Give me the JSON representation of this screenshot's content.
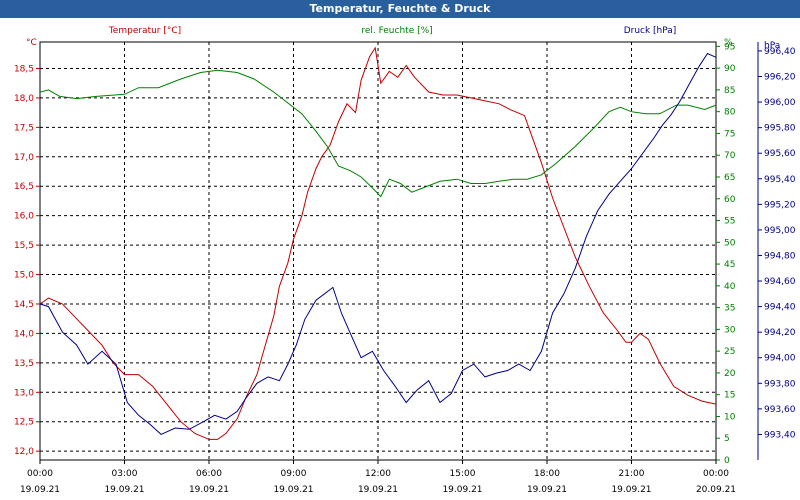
{
  "window": {
    "title": "Temperatur, Feuchte & Druck"
  },
  "colors": {
    "temperature": "#c00000",
    "humidity": "#008000",
    "pressure": "#00008b",
    "titlebar": "#2a5f9e",
    "grid": "#000000"
  },
  "chart_data": {
    "type": "line",
    "title": "Temperatur, Feuchte & Druck",
    "grid": true,
    "x_unit": "hours since 19.09.21 00:00",
    "x_ticks": [
      {
        "time": "00:00",
        "date": "19.09.21"
      },
      {
        "time": "03:00",
        "date": "19.09.21"
      },
      {
        "time": "06:00",
        "date": "19.09.21"
      },
      {
        "time": "09:00",
        "date": "19.09.21"
      },
      {
        "time": "12:00",
        "date": "19.09.21"
      },
      {
        "time": "15:00",
        "date": "19.09.21"
      },
      {
        "time": "18:00",
        "date": "19.09.21"
      },
      {
        "time": "21:00",
        "date": "19.09.21"
      },
      {
        "time": "00:00",
        "date": "20.09.21"
      }
    ],
    "xlim": [
      0,
      24
    ],
    "axes": {
      "temperature": {
        "header": "Temperatur [°C]",
        "unit": "°C",
        "min": 11.85,
        "max": 18.95,
        "ticks": [
          "12,0",
          "12,5",
          "13,0",
          "13,5",
          "14,0",
          "14,5",
          "15,0",
          "15,5",
          "16,0",
          "16,5",
          "17,0",
          "17,5",
          "18,0",
          "18,5"
        ],
        "tick_values": [
          12.0,
          12.5,
          13.0,
          13.5,
          14.0,
          14.5,
          15.0,
          15.5,
          16.0,
          16.5,
          17.0,
          17.5,
          18.0,
          18.5
        ]
      },
      "humidity": {
        "header": "rel. Feuchte [%]",
        "unit": "%",
        "min": 0,
        "max": 96,
        "ticks": [
          "0",
          "5",
          "10",
          "15",
          "20",
          "25",
          "30",
          "35",
          "40",
          "45",
          "50",
          "55",
          "60",
          "65",
          "70",
          "75",
          "80",
          "85",
          "90",
          "95",
          "%"
        ],
        "tick_values": [
          0,
          5,
          10,
          15,
          20,
          25,
          30,
          35,
          40,
          45,
          50,
          55,
          60,
          65,
          70,
          75,
          80,
          85,
          90,
          95,
          96
        ]
      },
      "pressure": {
        "header": "Druck [hPa]",
        "unit": "hPa",
        "min": 993.2,
        "max": 996.47,
        "ticks": [
          "993,40",
          "993,60",
          "993,80",
          "994,00",
          "994,20",
          "994,40",
          "994,60",
          "994,80",
          "995,00",
          "995,20",
          "995,40",
          "995,60",
          "995,80",
          "996,00",
          "996,20",
          "996,40"
        ],
        "tick_values": [
          993.4,
          993.6,
          993.8,
          994.0,
          994.2,
          994.4,
          994.6,
          994.8,
          995.0,
          995.2,
          995.4,
          995.6,
          995.8,
          996.0,
          996.2,
          996.4
        ]
      }
    },
    "series": [
      {
        "name": "Temperatur",
        "axis": "temperature",
        "color": "#c00000",
        "points": [
          [
            0,
            14.5
          ],
          [
            0.3,
            14.6
          ],
          [
            0.8,
            14.5
          ],
          [
            1.2,
            14.3
          ],
          [
            1.7,
            14.05
          ],
          [
            2.2,
            13.8
          ],
          [
            2.6,
            13.5
          ],
          [
            3.0,
            13.3
          ],
          [
            3.5,
            13.3
          ],
          [
            4.0,
            13.1
          ],
          [
            4.5,
            12.8
          ],
          [
            5.0,
            12.5
          ],
          [
            5.5,
            12.3
          ],
          [
            6.0,
            12.2
          ],
          [
            6.3,
            12.2
          ],
          [
            6.6,
            12.3
          ],
          [
            7.0,
            12.55
          ],
          [
            7.3,
            12.9
          ],
          [
            7.7,
            13.3
          ],
          [
            8.0,
            13.8
          ],
          [
            8.3,
            14.3
          ],
          [
            8.5,
            14.8
          ],
          [
            8.8,
            15.2
          ],
          [
            9.0,
            15.6
          ],
          [
            9.3,
            16.0
          ],
          [
            9.5,
            16.4
          ],
          [
            9.8,
            16.8
          ],
          [
            10.0,
            17.0
          ],
          [
            10.3,
            17.2
          ],
          [
            10.6,
            17.6
          ],
          [
            10.9,
            17.9
          ],
          [
            11.2,
            17.75
          ],
          [
            11.4,
            18.3
          ],
          [
            11.7,
            18.7
          ],
          [
            11.9,
            18.85
          ],
          [
            12.1,
            18.25
          ],
          [
            12.4,
            18.45
          ],
          [
            12.7,
            18.35
          ],
          [
            13.0,
            18.55
          ],
          [
            13.3,
            18.35
          ],
          [
            13.8,
            18.1
          ],
          [
            14.3,
            18.05
          ],
          [
            14.8,
            18.05
          ],
          [
            15.3,
            18.0
          ],
          [
            15.8,
            17.95
          ],
          [
            16.3,
            17.9
          ],
          [
            16.7,
            17.8
          ],
          [
            17.2,
            17.7
          ],
          [
            17.5,
            17.3
          ],
          [
            17.8,
            16.9
          ],
          [
            18.2,
            16.3
          ],
          [
            18.6,
            15.8
          ],
          [
            19.0,
            15.3
          ],
          [
            19.5,
            14.8
          ],
          [
            20.0,
            14.35
          ],
          [
            20.5,
            14.05
          ],
          [
            20.8,
            13.85
          ],
          [
            21.0,
            13.85
          ],
          [
            21.3,
            14.0
          ],
          [
            21.6,
            13.9
          ],
          [
            22.0,
            13.5
          ],
          [
            22.5,
            13.1
          ],
          [
            23.0,
            12.95
          ],
          [
            23.5,
            12.85
          ],
          [
            24.0,
            12.8
          ]
        ]
      },
      {
        "name": "rel. Feuchte",
        "axis": "humidity",
        "color": "#008000",
        "points": [
          [
            0,
            84.5
          ],
          [
            0.3,
            85.0
          ],
          [
            0.7,
            83.5
          ],
          [
            1.3,
            83.0
          ],
          [
            2.0,
            83.5
          ],
          [
            3.0,
            84.0
          ],
          [
            3.5,
            85.5
          ],
          [
            4.2,
            85.5
          ],
          [
            5.0,
            87.5
          ],
          [
            5.7,
            89.0
          ],
          [
            6.3,
            89.5
          ],
          [
            7.0,
            89.0
          ],
          [
            7.6,
            87.5
          ],
          [
            8.3,
            84.5
          ],
          [
            8.8,
            82.0
          ],
          [
            9.3,
            79.5
          ],
          [
            9.8,
            75.5
          ],
          [
            10.2,
            72.0
          ],
          [
            10.6,
            67.5
          ],
          [
            11.0,
            66.5
          ],
          [
            11.4,
            65.0
          ],
          [
            11.8,
            62.5
          ],
          [
            12.1,
            60.5
          ],
          [
            12.4,
            64.5
          ],
          [
            12.8,
            63.5
          ],
          [
            13.2,
            61.5
          ],
          [
            13.6,
            62.5
          ],
          [
            14.2,
            64.0
          ],
          [
            14.8,
            64.5
          ],
          [
            15.3,
            63.5
          ],
          [
            15.8,
            63.5
          ],
          [
            16.3,
            64.0
          ],
          [
            16.8,
            64.5
          ],
          [
            17.3,
            64.5
          ],
          [
            17.8,
            65.5
          ],
          [
            18.3,
            68.0
          ],
          [
            19.0,
            72.0
          ],
          [
            19.7,
            76.5
          ],
          [
            20.2,
            80.0
          ],
          [
            20.6,
            81.0
          ],
          [
            21.0,
            80.0
          ],
          [
            21.5,
            79.5
          ],
          [
            22.0,
            79.5
          ],
          [
            22.6,
            81.5
          ],
          [
            23.0,
            81.5
          ],
          [
            23.6,
            80.5
          ],
          [
            24.0,
            81.5
          ]
        ]
      },
      {
        "name": "Druck",
        "axis": "pressure",
        "color": "#00008b",
        "points": [
          [
            0,
            994.42
          ],
          [
            0.3,
            994.4
          ],
          [
            0.8,
            994.2
          ],
          [
            1.3,
            994.1
          ],
          [
            1.7,
            993.95
          ],
          [
            2.2,
            994.05
          ],
          [
            2.7,
            993.95
          ],
          [
            3.1,
            993.65
          ],
          [
            3.5,
            993.55
          ],
          [
            3.9,
            993.48
          ],
          [
            4.3,
            993.4
          ],
          [
            4.8,
            993.45
          ],
          [
            5.3,
            993.44
          ],
          [
            5.8,
            993.5
          ],
          [
            6.2,
            993.55
          ],
          [
            6.6,
            993.52
          ],
          [
            7.0,
            993.58
          ],
          [
            7.3,
            993.68
          ],
          [
            7.7,
            993.8
          ],
          [
            8.1,
            993.85
          ],
          [
            8.5,
            993.82
          ],
          [
            8.8,
            993.95
          ],
          [
            9.1,
            994.1
          ],
          [
            9.4,
            994.3
          ],
          [
            9.8,
            994.45
          ],
          [
            10.1,
            994.5
          ],
          [
            10.4,
            994.55
          ],
          [
            10.7,
            994.35
          ],
          [
            11.0,
            994.2
          ],
          [
            11.4,
            994.0
          ],
          [
            11.8,
            994.05
          ],
          [
            12.2,
            993.9
          ],
          [
            12.6,
            993.78
          ],
          [
            13.0,
            993.65
          ],
          [
            13.4,
            993.75
          ],
          [
            13.8,
            993.82
          ],
          [
            14.2,
            993.65
          ],
          [
            14.6,
            993.72
          ],
          [
            15.0,
            993.9
          ],
          [
            15.4,
            993.95
          ],
          [
            15.8,
            993.85
          ],
          [
            16.2,
            993.88
          ],
          [
            16.6,
            993.9
          ],
          [
            17.0,
            993.95
          ],
          [
            17.4,
            993.9
          ],
          [
            17.8,
            994.05
          ],
          [
            18.2,
            994.35
          ],
          [
            18.6,
            994.5
          ],
          [
            19.0,
            994.7
          ],
          [
            19.4,
            994.95
          ],
          [
            19.8,
            995.15
          ],
          [
            20.2,
            995.28
          ],
          [
            20.6,
            995.38
          ],
          [
            21.0,
            995.48
          ],
          [
            21.4,
            995.6
          ],
          [
            21.8,
            995.72
          ],
          [
            22.1,
            995.82
          ],
          [
            22.4,
            995.9
          ],
          [
            22.7,
            996.0
          ],
          [
            23.0,
            996.12
          ],
          [
            23.4,
            996.28
          ],
          [
            23.7,
            996.38
          ],
          [
            24.0,
            996.35
          ]
        ]
      }
    ]
  }
}
